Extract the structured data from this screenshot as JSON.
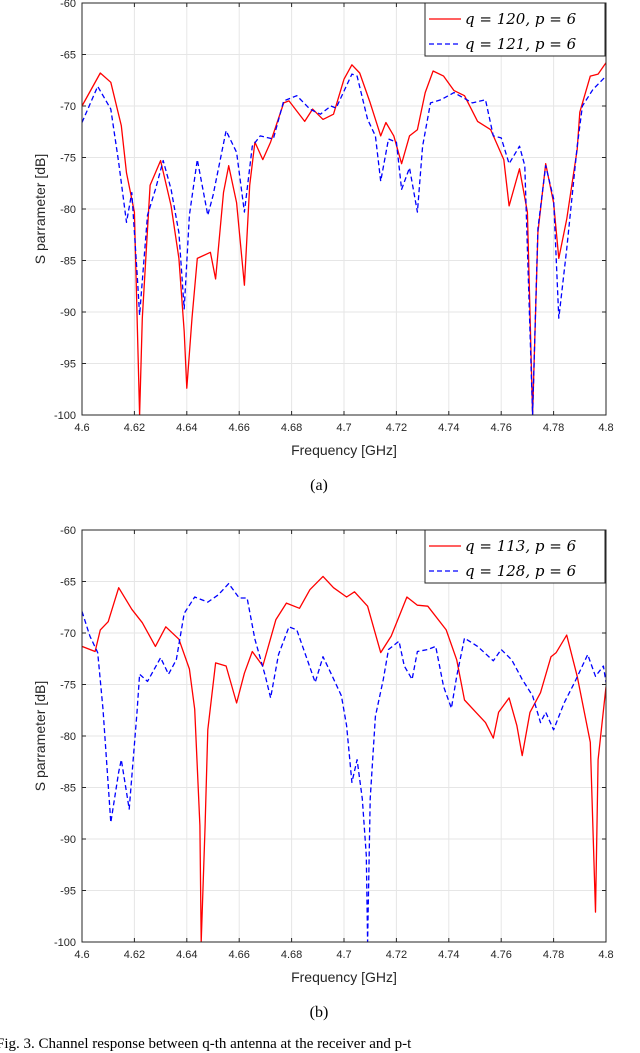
{
  "chart_data": [
    {
      "type": "line",
      "panel_label": "(a)",
      "xlabel": "Frequency [GHz]",
      "ylabel": "S parrameter [dB]",
      "xlim": [
        4.6,
        4.8
      ],
      "ylim": [
        -100,
        -60
      ],
      "xticks": [
        "4.6",
        "4.62",
        "4.64",
        "4.66",
        "4.68",
        "4.7",
        "4.72",
        "4.74",
        "4.76",
        "4.78",
        "4.8"
      ],
      "yticks": [
        "-60",
        "-65",
        "-70",
        "-75",
        "-80",
        "-85",
        "-90",
        "-95",
        "-100"
      ],
      "grid": true,
      "legend_position": "top-right",
      "series": [
        {
          "name": "q = 120,  p = 6",
          "color": "#ff0000",
          "style": "solid",
          "x": [
            4.6,
            4.607,
            4.611,
            4.615,
            4.617,
            4.62,
            4.622,
            4.623,
            4.626,
            4.63,
            4.634,
            4.637,
            4.639,
            4.64,
            4.642,
            4.644,
            4.649,
            4.651,
            4.654,
            4.656,
            4.659,
            4.662,
            4.664,
            4.666,
            4.669,
            4.672,
            4.677,
            4.679,
            4.685,
            4.688,
            4.692,
            4.696,
            4.7,
            4.703,
            4.706,
            4.71,
            4.714,
            4.716,
            4.719,
            4.722,
            4.725,
            4.728,
            4.731,
            4.734,
            4.738,
            4.742,
            4.746,
            4.751,
            4.756,
            4.761,
            4.763,
            4.767,
            4.77,
            4.772,
            4.774,
            4.777,
            4.78,
            4.782,
            4.785,
            4.789,
            4.79,
            4.794,
            4.797,
            4.8
          ],
          "y": [
            -70,
            -66.8,
            -67.7,
            -71.9,
            -76.5,
            -80.3,
            -100,
            -90.6,
            -77.7,
            -75.3,
            -79.7,
            -84.8,
            -91.9,
            -97.4,
            -90.6,
            -84.8,
            -84.2,
            -86.8,
            -78.4,
            -75.8,
            -79.4,
            -87.4,
            -77.7,
            -73.5,
            -75.2,
            -73.5,
            -69.7,
            -69.5,
            -71.5,
            -70.3,
            -71.3,
            -70.8,
            -67.4,
            -66,
            -66.8,
            -69.7,
            -72.9,
            -71.6,
            -72.9,
            -75.6,
            -72.9,
            -72.3,
            -68.7,
            -66.6,
            -67.1,
            -68.5,
            -69,
            -71.5,
            -72.3,
            -75.2,
            -79.7,
            -76.1,
            -80.3,
            -100,
            -82.3,
            -75.6,
            -79.4,
            -84.8,
            -81,
            -74.2,
            -70.6,
            -67.1,
            -66.9,
            -65.8
          ]
        },
        {
          "name": "q = 121,  p = 6",
          "color": "#0000ff",
          "style": "dashed",
          "x": [
            4.6,
            4.606,
            4.611,
            4.614,
            4.617,
            4.619,
            4.621,
            4.622,
            4.625,
            4.628,
            4.631,
            4.634,
            4.637,
            4.639,
            4.641,
            4.644,
            4.648,
            4.65,
            4.655,
            4.659,
            4.662,
            4.665,
            4.668,
            4.673,
            4.677,
            4.682,
            4.687,
            4.691,
            4.695,
            4.697,
            4.703,
            4.705,
            4.709,
            4.712,
            4.714,
            4.717,
            4.72,
            4.722,
            4.725,
            4.728,
            4.73,
            4.733,
            4.737,
            4.742,
            4.749,
            4.754,
            4.757,
            4.76,
            4.763,
            4.767,
            4.769,
            4.772,
            4.774,
            4.777,
            4.78,
            4.782,
            4.785,
            4.789,
            4.791,
            4.795,
            4.8
          ],
          "y": [
            -71.6,
            -68.1,
            -70.3,
            -75.5,
            -81.3,
            -78.4,
            -86.1,
            -90.3,
            -80.6,
            -78.1,
            -75.3,
            -78.1,
            -82.3,
            -89.7,
            -80.6,
            -75.2,
            -80.6,
            -78.7,
            -72.4,
            -74.5,
            -80.3,
            -73.9,
            -72.9,
            -73.2,
            -69.5,
            -69,
            -70.3,
            -70.8,
            -70,
            -70.2,
            -66.9,
            -67.1,
            -71.3,
            -72.9,
            -77.3,
            -73.2,
            -73.5,
            -78.1,
            -76,
            -80.3,
            -73.9,
            -69.7,
            -69.4,
            -68.7,
            -69.7,
            -69.4,
            -72.9,
            -73.1,
            -75.6,
            -73.9,
            -75.8,
            -100,
            -81.9,
            -75.8,
            -79,
            -90.6,
            -83.9,
            -73.9,
            -70,
            -68.4,
            -67.1
          ]
        }
      ]
    },
    {
      "type": "line",
      "panel_label": "(b)",
      "xlabel": "Frequency [GHz]",
      "ylabel": "S parrameter [dB]",
      "xlim": [
        4.6,
        4.8
      ],
      "ylim": [
        -100,
        -60
      ],
      "xticks": [
        "4.6",
        "4.62",
        "4.64",
        "4.66",
        "4.68",
        "4.7",
        "4.72",
        "4.74",
        "4.76",
        "4.78",
        "4.8"
      ],
      "yticks": [
        "-60",
        "-65",
        "-70",
        "-75",
        "-80",
        "-85",
        "-90",
        "-95",
        "-100"
      ],
      "grid": true,
      "legend_position": "top-right",
      "series": [
        {
          "name": "q = 113,  p = 6",
          "color": "#ff0000",
          "style": "solid",
          "x": [
            4.6,
            4.605,
            4.607,
            4.61,
            4.614,
            4.619,
            4.623,
            4.628,
            4.632,
            4.637,
            4.641,
            4.643,
            4.645,
            4.6455,
            4.647,
            4.648,
            4.651,
            4.655,
            4.659,
            4.662,
            4.665,
            4.669,
            4.674,
            4.678,
            4.683,
            4.687,
            4.692,
            4.696,
            4.701,
            4.704,
            4.709,
            4.714,
            4.718,
            4.724,
            4.728,
            4.732,
            4.739,
            4.743,
            4.746,
            4.75,
            4.754,
            4.757,
            4.759,
            4.763,
            4.766,
            4.768,
            4.771,
            4.775,
            4.779,
            4.781,
            4.785,
            4.789,
            4.794,
            4.796,
            4.797,
            4.8
          ],
          "y": [
            -71.3,
            -71.8,
            -69.7,
            -68.9,
            -65.6,
            -67.7,
            -69,
            -71.3,
            -69.4,
            -70.6,
            -73.5,
            -77.4,
            -88.7,
            -100,
            -88.7,
            -79.4,
            -72.9,
            -73.2,
            -76.8,
            -73.9,
            -71.8,
            -73.2,
            -68.7,
            -67.1,
            -67.6,
            -65.8,
            -64.5,
            -65.6,
            -66.5,
            -66,
            -67.4,
            -71.9,
            -70.3,
            -66.5,
            -67.3,
            -67.4,
            -69.7,
            -72.6,
            -76.5,
            -77.6,
            -78.7,
            -80.2,
            -77.7,
            -76.3,
            -79,
            -81.9,
            -77.7,
            -75.8,
            -72.3,
            -71.9,
            -70.2,
            -74.2,
            -80.6,
            -97.1,
            -82.3,
            -75.2
          ]
        },
        {
          "name": "q = 128,  p = 6",
          "color": "#0000ff",
          "style": "dashed",
          "x": [
            4.6,
            4.603,
            4.606,
            4.608,
            4.611,
            4.614,
            4.615,
            4.618,
            4.621,
            4.622,
            4.625,
            4.63,
            4.633,
            4.636,
            4.639,
            4.643,
            4.648,
            4.652,
            4.656,
            4.66,
            4.663,
            4.666,
            4.67,
            4.672,
            4.675,
            4.679,
            4.682,
            4.686,
            4.689,
            4.692,
            4.695,
            4.699,
            4.701,
            4.703,
            4.705,
            4.707,
            4.7085,
            4.709,
            4.71,
            4.712,
            4.715,
            4.717,
            4.721,
            4.723,
            4.726,
            4.728,
            4.732,
            4.735,
            4.738,
            4.741,
            4.743,
            4.746,
            4.751,
            4.757,
            4.76,
            4.764,
            4.768,
            4.772,
            4.775,
            4.777,
            4.78,
            4.784,
            4.788,
            4.793,
            4.796,
            4.799,
            4.8
          ],
          "y": [
            -67.9,
            -70.3,
            -71.9,
            -77.4,
            -88.4,
            -83.5,
            -82.3,
            -87.1,
            -77.7,
            -74,
            -74.7,
            -72.4,
            -74,
            -72.6,
            -68.1,
            -66.5,
            -67,
            -66.3,
            -65.2,
            -66.6,
            -66.6,
            -70.6,
            -74.2,
            -76.3,
            -72.1,
            -69.4,
            -69.7,
            -72.6,
            -74.8,
            -72.3,
            -73.9,
            -76.1,
            -79,
            -84.5,
            -82.3,
            -86.1,
            -91.6,
            -100,
            -86.1,
            -78.1,
            -74.5,
            -71.6,
            -70.8,
            -73.2,
            -74.5,
            -71.8,
            -71.6,
            -71.3,
            -75.2,
            -77.3,
            -74.2,
            -70.5,
            -71.3,
            -72.7,
            -71.6,
            -72.6,
            -74.5,
            -76.1,
            -78.7,
            -77.7,
            -79.4,
            -76.8,
            -74.8,
            -72.1,
            -74.2,
            -73.2,
            -74.8
          ]
        }
      ]
    }
  ],
  "caption": "Fig. 3.   Channel response between q-th antenna at the receiver and p-t"
}
